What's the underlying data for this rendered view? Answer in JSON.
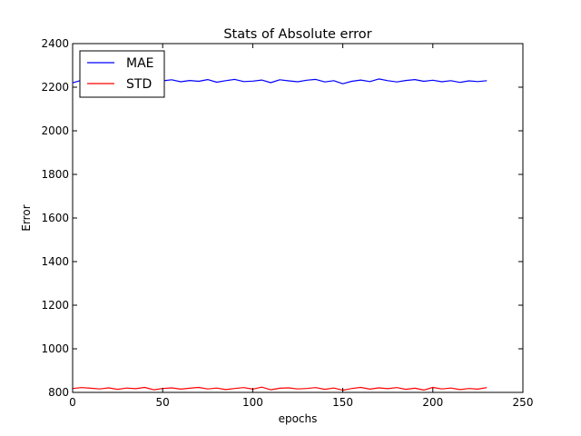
{
  "chart_data": {
    "type": "line",
    "title": "Stats of Absolute error",
    "xlabel": "epochs",
    "ylabel": "Error",
    "xlim": [
      0,
      250
    ],
    "ylim": [
      800,
      2400
    ],
    "xticks": [
      "0",
      "50",
      "100",
      "150",
      "200",
      "250"
    ],
    "yticks": [
      "800",
      "1000",
      "1200",
      "1400",
      "1600",
      "1800",
      "2000",
      "2200",
      "2400"
    ],
    "grid": false,
    "legend_position": "top-left",
    "series": [
      {
        "name": "MAE",
        "color": "#0000ff",
        "x": [
          0,
          5,
          10,
          15,
          20,
          25,
          30,
          35,
          40,
          45,
          50,
          55,
          60,
          65,
          70,
          75,
          80,
          85,
          90,
          95,
          100,
          105,
          110,
          115,
          120,
          125,
          130,
          135,
          140,
          145,
          150,
          155,
          160,
          165,
          170,
          175,
          180,
          185,
          190,
          195,
          200,
          205,
          210,
          215,
          220,
          225,
          230
        ],
        "y": [
          2220,
          2232,
          2228,
          2235,
          2226,
          2233,
          2224,
          2230,
          2236,
          2222,
          2229,
          2234,
          2225,
          2231,
          2227,
          2235,
          2223,
          2230,
          2236,
          2226,
          2228,
          2233,
          2221,
          2234,
          2229,
          2225,
          2232,
          2236,
          2224,
          2230,
          2216,
          2227,
          2233,
          2226,
          2238,
          2230,
          2224,
          2231,
          2235,
          2227,
          2232,
          2225,
          2230,
          2222,
          2229,
          2226,
          2230
        ]
      },
      {
        "name": "STD",
        "color": "#ff0000",
        "x": [
          0,
          5,
          10,
          15,
          20,
          25,
          30,
          35,
          40,
          45,
          50,
          55,
          60,
          65,
          70,
          75,
          80,
          85,
          90,
          95,
          100,
          105,
          110,
          115,
          120,
          125,
          130,
          135,
          140,
          145,
          150,
          155,
          160,
          165,
          170,
          175,
          180,
          185,
          190,
          195,
          200,
          205,
          210,
          215,
          220,
          225,
          230
        ],
        "y": [
          818,
          822,
          819,
          816,
          821,
          814,
          820,
          817,
          823,
          812,
          818,
          821,
          815,
          819,
          823,
          816,
          820,
          813,
          818,
          822,
          815,
          824,
          812,
          819,
          821,
          816,
          818,
          822,
          814,
          820,
          810,
          818,
          823,
          815,
          821,
          817,
          822,
          814,
          819,
          811,
          823,
          816,
          820,
          813,
          818,
          815,
          822
        ]
      }
    ]
  }
}
